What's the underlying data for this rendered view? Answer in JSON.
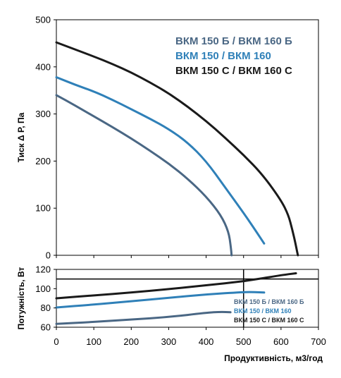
{
  "chart_data": [
    {
      "type": "line",
      "ylabel": "Тиск Δ Р, Па",
      "xlim": [
        0,
        700
      ],
      "ylim": [
        0,
        500
      ],
      "x_ticks": [
        0,
        100,
        200,
        300,
        400,
        500,
        600,
        700
      ],
      "y_ticks": [
        0,
        100,
        200,
        300,
        400,
        500
      ],
      "legend_position": "top-right",
      "series": [
        {
          "name": "ВКМ 150 Б / ВКМ 160 Б",
          "color": "#4a6784",
          "x": [
            0,
            50,
            100,
            150,
            200,
            250,
            300,
            350,
            400,
            440,
            460,
            466,
            468
          ],
          "y": [
            340,
            318,
            295,
            272,
            248,
            222,
            195,
            163,
            125,
            85,
            50,
            18,
            0
          ]
        },
        {
          "name": "ВКМ 150 / ВКМ 160",
          "color": "#2f80b8",
          "x": [
            0,
            50,
            100,
            150,
            200,
            250,
            300,
            350,
            400,
            450,
            500,
            530,
            555
          ],
          "y": [
            378,
            362,
            348,
            330,
            310,
            290,
            268,
            240,
            200,
            145,
            90,
            55,
            25
          ]
        },
        {
          "name": "ВКМ 150 С / ВКМ 160 С",
          "color": "#1a1a1a",
          "x": [
            0,
            50,
            100,
            150,
            200,
            250,
            300,
            350,
            400,
            450,
            500,
            550,
            600,
            620,
            630,
            640,
            645
          ],
          "y": [
            452,
            437,
            422,
            406,
            388,
            367,
            344,
            316,
            285,
            250,
            213,
            172,
            117,
            85,
            55,
            20,
            0
          ]
        }
      ]
    },
    {
      "type": "line",
      "xlabel": "Продуктивність, м3/год",
      "ylabel": "Потужність, Вт",
      "xlim": [
        0,
        700
      ],
      "ylim": [
        60,
        120
      ],
      "x_ticks": [
        0,
        100,
        200,
        300,
        400,
        500,
        600,
        700
      ],
      "y_ticks": [
        60,
        80,
        100,
        120
      ],
      "legend_position": "bottom-right",
      "series": [
        {
          "name": "ВКМ 150 Б / ВКМ 160 Б",
          "color": "#4a6784",
          "x": [
            0,
            100,
            200,
            300,
            400,
            440,
            465
          ],
          "y": [
            63.5,
            65.5,
            68,
            70.5,
            75,
            76,
            75.5
          ]
        },
        {
          "name": "ВКМ 150 / ВКМ 160",
          "color": "#2f80b8",
          "x": [
            0,
            100,
            200,
            300,
            400,
            500,
            530,
            555
          ],
          "y": [
            80.5,
            83.5,
            87,
            90.5,
            94,
            96.5,
            96.5,
            96
          ]
        },
        {
          "name": "ВКМ 150 С / ВКМ 160 С",
          "color": "#1a1a1a",
          "x": [
            0,
            100,
            200,
            300,
            400,
            500,
            600,
            640
          ],
          "y": [
            90,
            93,
            96,
            99.5,
            103.5,
            107.5,
            114,
            116
          ]
        }
      ]
    }
  ]
}
